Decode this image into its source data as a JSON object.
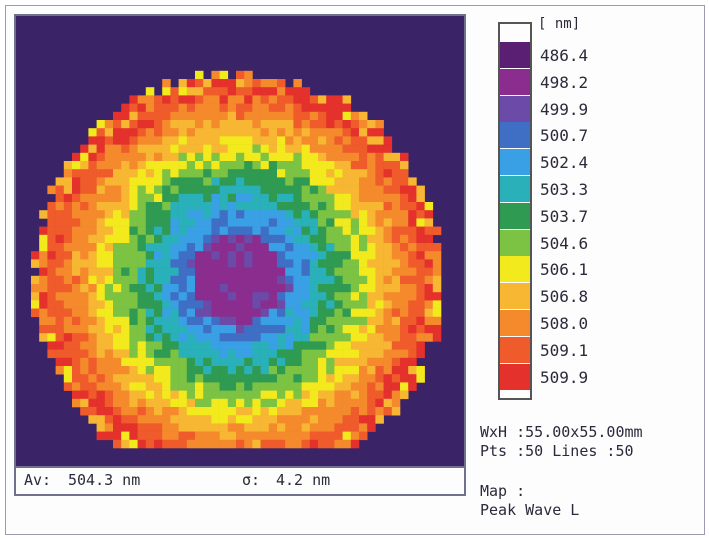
{
  "stats": {
    "average_label": "Av:",
    "average_value": "504.3 nm",
    "sigma_label": "σ:",
    "sigma_value": "4.2 nm"
  },
  "legend": {
    "unit": "[ nm]",
    "entries": [
      {
        "value": "486.4",
        "color": "#5a1f72"
      },
      {
        "value": "498.2",
        "color": "#8a2d8f"
      },
      {
        "value": "499.9",
        "color": "#6b4aa8"
      },
      {
        "value": "500.7",
        "color": "#3f6fc4"
      },
      {
        "value": "502.4",
        "color": "#3aa0e6"
      },
      {
        "value": "503.3",
        "color": "#29b0b8"
      },
      {
        "value": "503.7",
        "color": "#2e9a52"
      },
      {
        "value": "504.6",
        "color": "#7cc243"
      },
      {
        "value": "506.1",
        "color": "#f2ea1c"
      },
      {
        "value": "506.8",
        "color": "#f7b733"
      },
      {
        "value": "508.0",
        "color": "#f48a2c"
      },
      {
        "value": "509.1",
        "color": "#ef5b2a"
      },
      {
        "value": "509.9",
        "color": "#e4312b"
      }
    ]
  },
  "info": {
    "dimensions": "WxH :55.00x55.00mm",
    "points": "Pts :50 Lines :50",
    "map_label": "Map :",
    "map_mode": "Peak Wave L"
  },
  "chart_data": {
    "type": "heatmap",
    "grid_points": 50,
    "grid_lines": 50,
    "width_mm": 55.0,
    "height_mm": 55.0,
    "unit": "nm",
    "average": 504.3,
    "sigma": 4.2,
    "scale_levels": [
      486.4,
      498.2,
      499.9,
      500.7,
      502.4,
      503.3,
      503.7,
      504.6,
      506.1,
      506.8,
      508.0,
      509.1,
      509.9
    ],
    "background_color": "#3a2366"
  }
}
